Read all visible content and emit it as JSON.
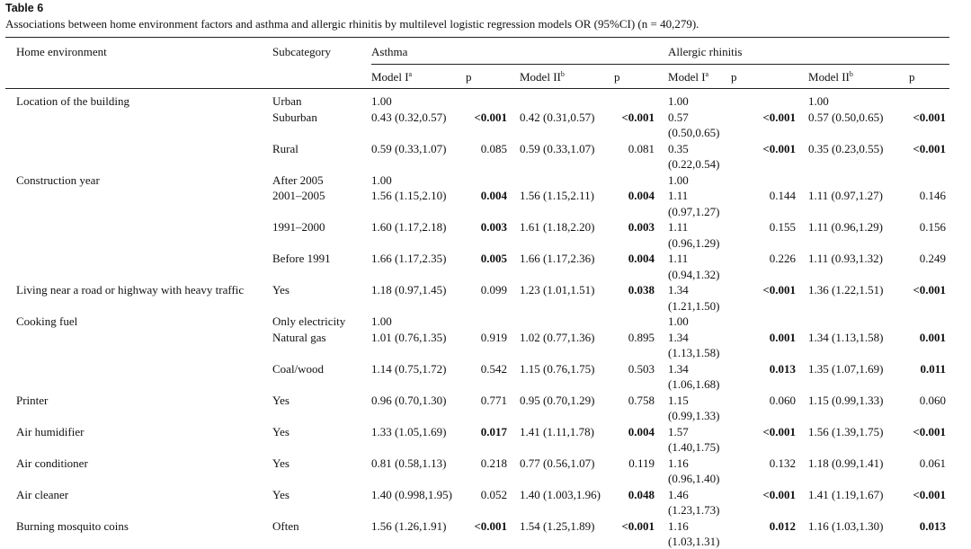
{
  "header": {
    "title": "Table 6",
    "caption": "Associations between home environment factors and asthma and allergic rhinitis by multilevel logistic regression models OR (95%CI) (n = 40,279)."
  },
  "table": {
    "columns": [
      "Home environment",
      "Subcategory"
    ],
    "groups": [
      "Asthma",
      "Allergic rhinitis"
    ],
    "subheaders": [
      {
        "text": "Model I",
        "note": "a"
      },
      {
        "text": "p"
      },
      {
        "text": "Model II",
        "note": "b"
      },
      {
        "text": "p"
      },
      {
        "text": "Model I",
        "note": "a"
      },
      {
        "text": "p"
      },
      {
        "text": "Model II",
        "note": "b"
      },
      {
        "text": "p"
      }
    ],
    "rows": [
      [
        "Location of the building",
        "Urban",
        "1.00",
        null,
        null,
        null,
        "1.00",
        null,
        "1.00",
        null
      ],
      [
        null,
        "Suburban",
        "0.43 (0.32,0.57)",
        "<0.001",
        "0.42 (0.31,0.57)",
        "<0.001",
        "0.57 (0.50,0.65)",
        "<0.001",
        "0.57 (0.50,0.65)",
        "<0.001"
      ],
      [
        null,
        "Rural",
        "0.59 (0.33,1.07)",
        "0.085",
        "0.59 (0.33,1.07)",
        "0.081",
        "0.35 (0.22,0.54)",
        "<0.001",
        "0.35 (0.23,0.55)",
        "<0.001"
      ],
      [
        "Construction year",
        "After 2005",
        "1.00",
        null,
        null,
        null,
        "1.00",
        null,
        null,
        null
      ],
      [
        null,
        "2001–2005",
        "1.56 (1.15,2.10)",
        "0.004",
        "1.56 (1.15,2.11)",
        "0.004",
        "1.11 (0.97,1.27)",
        "0.144",
        "1.11 (0.97,1.27)",
        "0.146"
      ],
      [
        null,
        "1991–2000",
        "1.60 (1.17,2.18)",
        "0.003",
        "1.61 (1.18,2.20)",
        "0.003",
        "1.11 (0.96,1.29)",
        "0.155",
        "1.11 (0.96,1.29)",
        "0.156"
      ],
      [
        null,
        "Before 1991",
        "1.66 (1.17,2.35)",
        "0.005",
        "1.66 (1.17,2.36)",
        "0.004",
        "1.11 (0.94,1.32)",
        "0.226",
        "1.11 (0.93,1.32)",
        "0.249"
      ],
      [
        "Living near a road or highway with heavy traffic",
        "Yes",
        "1.18 (0.97,1.45)",
        "0.099",
        "1.23 (1.01,1.51)",
        "0.038",
        "1.34 (1.21,1.50)",
        "<0.001",
        "1.36 (1.22,1.51)",
        "<0.001"
      ],
      [
        "Cooking fuel",
        "Only electricity",
        "1.00",
        null,
        null,
        null,
        "1.00",
        null,
        null,
        null
      ],
      [
        null,
        "Natural gas",
        "1.01 (0.76,1.35)",
        "0.919",
        "1.02 (0.77,1.36)",
        "0.895",
        "1.34 (1.13,1.58)",
        "0.001",
        "1.34 (1.13,1.58)",
        "0.001"
      ],
      [
        null,
        "Coal/wood",
        "1.14 (0.75,1.72)",
        "0.542",
        "1.15 (0.76,1.75)",
        "0.503",
        "1.34 (1.06,1.68)",
        "0.013",
        "1.35 (1.07,1.69)",
        "0.011"
      ],
      [
        "Printer",
        "Yes",
        "0.96 (0.70,1.30)",
        "0.771",
        "0.95 (0.70,1.29)",
        "0.758",
        "1.15 (0.99,1.33)",
        "0.060",
        "1.15 (0.99,1.33)",
        "0.060"
      ],
      [
        "Air humidifier",
        "Yes",
        "1.33 (1.05,1.69)",
        "0.017",
        "1.41 (1.11,1.78)",
        "0.004",
        "1.57 (1.40,1.75)",
        "<0.001",
        "1.56 (1.39,1.75)",
        "<0.001"
      ],
      [
        "Air conditioner",
        "Yes",
        "0.81 (0.58,1.13)",
        "0.218",
        "0.77 (0.56,1.07)",
        "0.119",
        "1.16 (0.96,1.40)",
        "0.132",
        "1.18 (0.99,1.41)",
        "0.061"
      ],
      [
        "Air cleaner",
        "Yes",
        "1.40 (0.998,1.95)",
        "0.052",
        "1.40 (1.003,1.96)",
        "0.048",
        "1.46 (1.23,1.73)",
        "<0.001",
        "1.41 (1.19,1.67)",
        "<0.001"
      ],
      [
        "Burning mosquito coins",
        "Often",
        "1.56 (1.26,1.91)",
        "<0.001",
        "1.54 (1.25,1.89)",
        "<0.001",
        "1.16 (1.03,1.31)",
        "0.012",
        "1.16 (1.03,1.30)",
        "0.013"
      ]
    ]
  }
}
